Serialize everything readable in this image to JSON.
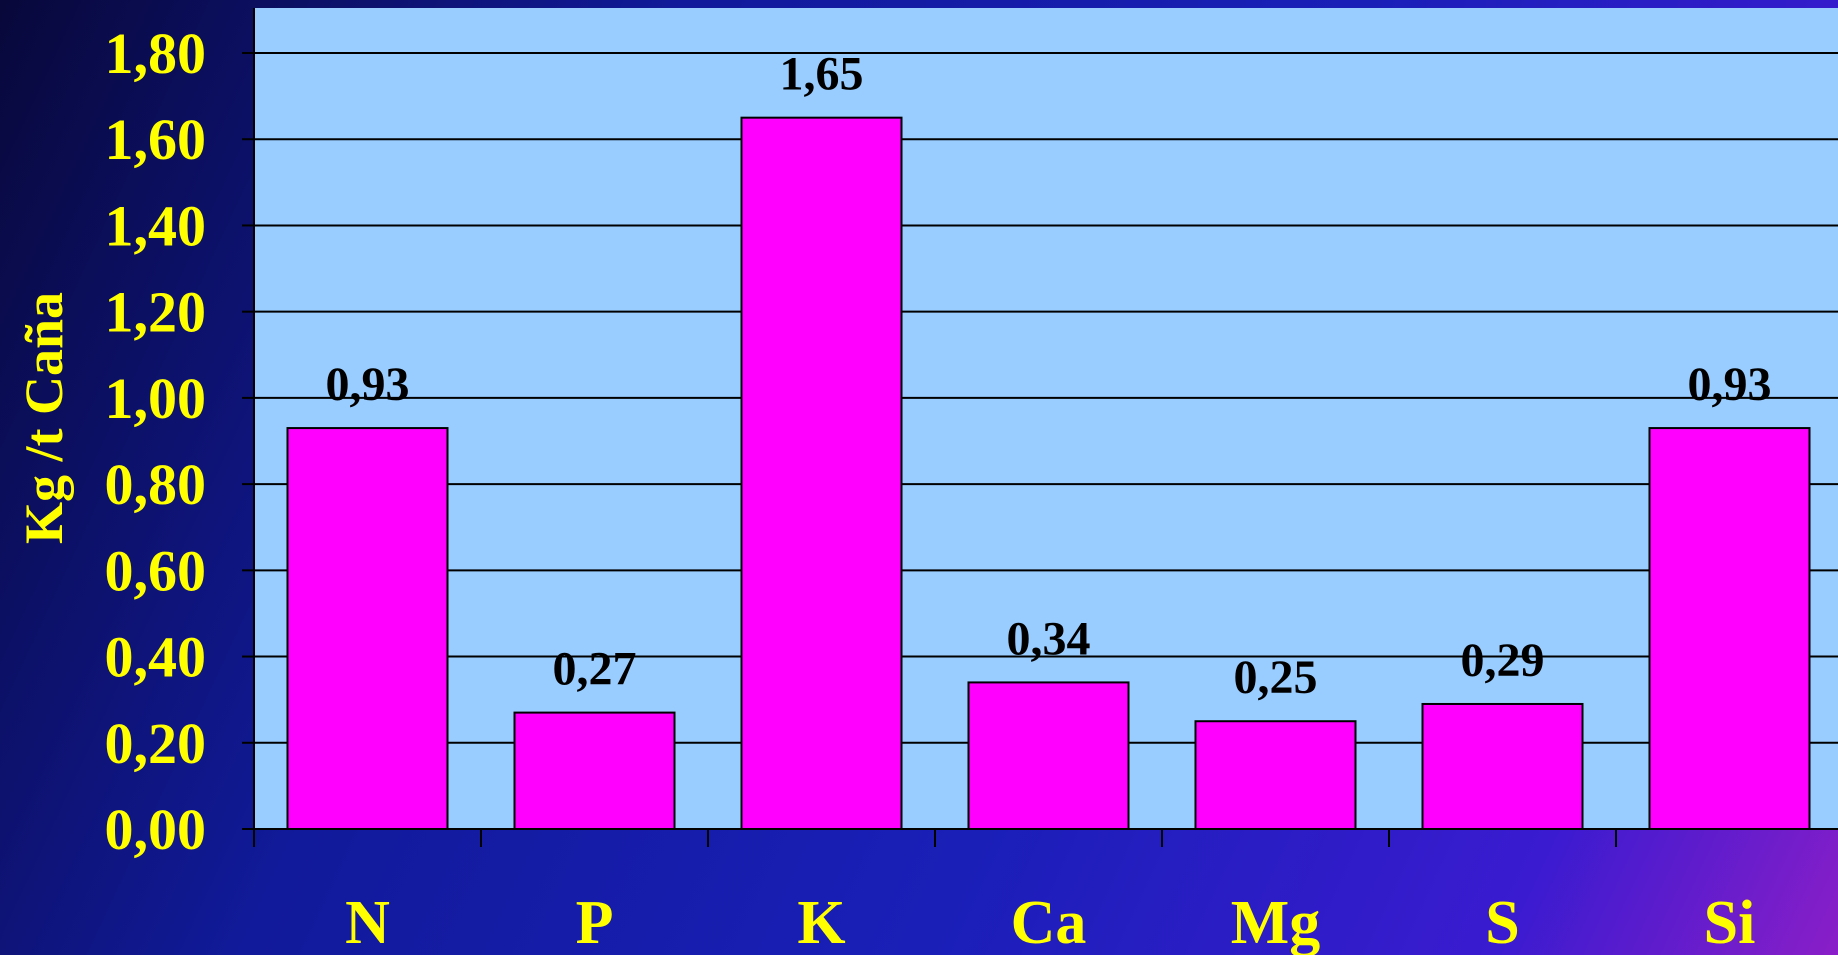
{
  "chart_data": {
    "type": "bar",
    "categories": [
      "N",
      "P",
      "K",
      "Ca",
      "Mg",
      "S",
      "Si"
    ],
    "values": [
      0.93,
      0.27,
      1.65,
      0.34,
      0.25,
      0.29,
      0.93
    ],
    "value_labels": [
      "0,93",
      "0,27",
      "1,65",
      "0,34",
      "0,25",
      "0,29",
      "0,93"
    ],
    "title": "",
    "xlabel": "",
    "ylabel": "Kg /t Caña",
    "ylim": [
      0,
      1.8
    ],
    "yticks": [
      0,
      0.2,
      0.4,
      0.6,
      0.8,
      1.0,
      1.2,
      1.4,
      1.6,
      1.8
    ],
    "ytick_labels": [
      "0,00",
      "0,20",
      "0,40",
      "0,60",
      "0,80",
      "1,00",
      "1,20",
      "1,40",
      "1,60",
      "1,80"
    ],
    "grid": true,
    "colors": {
      "bar": "#ff00ff",
      "plot_background": "#99ccff",
      "text": "#ffff00",
      "data_label": "#000000"
    }
  }
}
